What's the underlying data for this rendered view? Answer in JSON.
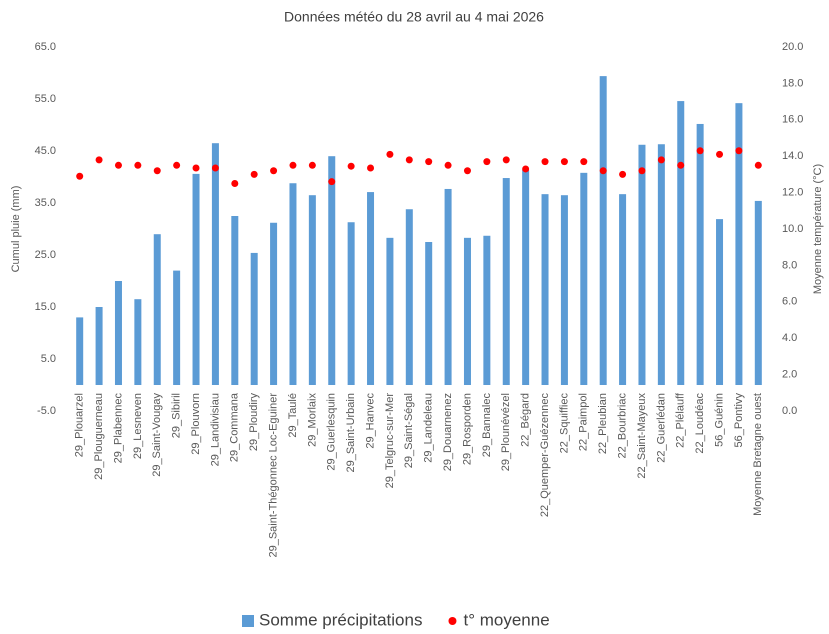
{
  "chart_data": {
    "type": "bar_scatter",
    "title": "Données météo du 28 avril au 4 mai 2026",
    "ylabel": "Cumul pluie (mm)",
    "y2label": "Moyenne température (°C)",
    "categories": [
      "29_Plouarzel",
      "29_Plouguerneau",
      "29_Plabennec",
      "29_Lesneven",
      "29_Saint-Vougay",
      "29_Sibiril",
      "29_Plouvorn",
      "29_Landivisiau",
      "29_Commana",
      "29_Ploudiry",
      "29_Saint-Thégonnec Loc-Eguiner",
      "29_Taulé",
      "29_Morlaix",
      "29_Guerlesquin",
      "29_Saint-Urbain",
      "29_Hanvec",
      "29_Telgruc-sur-Mer",
      "29_Saint-Ségal",
      "29_Landeleau",
      "29_Douarnenez",
      "29_Rosporden",
      "29_Bannalec",
      "29_Plounévézel",
      "22_Bégard",
      "22_Quemper-Guézennec",
      "22_Squiffiec",
      "22_Paimpol",
      "22_Pleubian",
      "22_Bourbriac",
      "22_Saint-Mayeux",
      "22_Guerlédan",
      "22_Plélauff",
      "22_Loudéac",
      "56_Guénin",
      "56_Pontivy",
      "Moyenne Bretagne ouest"
    ],
    "series": [
      {
        "name": "Somme précipitations",
        "color": "#5b9bd5",
        "kind": "bar",
        "values": [
          13,
          15,
          20,
          16.5,
          29,
          22,
          40.6,
          46.5,
          32.5,
          25.4,
          31.2,
          38.8,
          36.5,
          44,
          31.3,
          37.1,
          28.3,
          33.8,
          27.5,
          37.7,
          28.3,
          28.7,
          39.8,
          41.3,
          36.7,
          36.5,
          40.8,
          59.4,
          36.7,
          46.2,
          46.3,
          54.6,
          50.2,
          31.9,
          54.2,
          35.4
        ]
      },
      {
        "name": "t° moyenne",
        "color": "#ff0000",
        "kind": "dot",
        "axis": "y2",
        "values": [
          12.9,
          13.8,
          13.5,
          13.5,
          13.2,
          13.5,
          13.35,
          13.35,
          12.5,
          13.0,
          13.2,
          13.5,
          13.5,
          12.6,
          13.45,
          13.35,
          14.1,
          13.8,
          13.7,
          13.5,
          13.2,
          13.7,
          13.8,
          13.3,
          13.7,
          13.7,
          13.7,
          13.2,
          13.0,
          13.2,
          13.8,
          13.5,
          14.3,
          14.1,
          14.3,
          13.5
        ]
      }
    ],
    "ylim": [
      -5,
      65
    ],
    "yticks": [
      {
        "value": -5,
        "label": "-5.0"
      },
      {
        "value": 5,
        "label": "5.0"
      },
      {
        "value": 15,
        "label": "15.0"
      },
      {
        "value": 25,
        "label": "25.0"
      },
      {
        "value": 35,
        "label": "35.0"
      },
      {
        "value": 45,
        "label": "45.0"
      },
      {
        "value": 55,
        "label": "55.0"
      },
      {
        "value": 65,
        "label": "65.0"
      }
    ],
    "y2lim": [
      0,
      20
    ],
    "y2ticks": [
      {
        "value": 0,
        "label": "0.0"
      },
      {
        "value": 2,
        "label": "2.0"
      },
      {
        "value": 4,
        "label": "4.0"
      },
      {
        "value": 6,
        "label": "6.0"
      },
      {
        "value": 8,
        "label": "8.0"
      },
      {
        "value": 10,
        "label": "10.0"
      },
      {
        "value": 12,
        "label": "12.0"
      },
      {
        "value": 14,
        "label": "14.0"
      },
      {
        "value": 16,
        "label": "16.0"
      },
      {
        "value": 18,
        "label": "18.0"
      },
      {
        "value": 20,
        "label": "20.0"
      }
    ],
    "legend": "bottom"
  }
}
